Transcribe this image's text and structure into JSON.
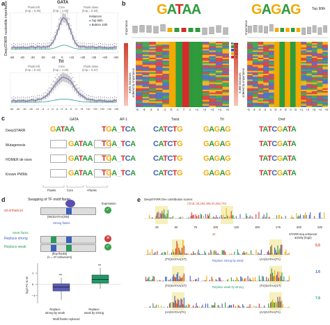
{
  "panels": {
    "a": "a",
    "b": "b",
    "c": "c",
    "d": "d",
    "e": "e"
  },
  "panel_a": {
    "top": {
      "title": "GATA",
      "flank_left": "Flank left",
      "flank_left_imp": "(imp = 0.36)",
      "core": "Core",
      "core_imp": "(imp = 1.00)",
      "flank_down": "Flank down",
      "flank_down_imp": "(imp = 0.40)",
      "legend_title": "Instances",
      "legend_top": "Top 90th",
      "legend_bottom": "Bottom 10th"
    },
    "bottom": {
      "title": "Trl",
      "flank_left": "Flank left",
      "flank_left_imp": "(imp = 0.42)",
      "core": "Core",
      "core_imp": "(imp = 1.00)",
      "flank_down": "Flank down",
      "flank_down_imp": "(imp = 0.37)"
    },
    "ylabel": "DeepSTARR nucleotide importance",
    "xticks_top": [
      "-50",
      "-40",
      "-30",
      "-20",
      "-10",
      "0",
      "+10",
      "+20",
      "+30",
      "+40",
      "+50"
    ],
    "xticks_bottom": [
      "-50",
      "-40",
      "-30",
      "-20",
      "-10",
      "-5",
      "-1",
      "G",
      "A",
      "G",
      "A",
      "G",
      "+1",
      "+5",
      "+10",
      "+20",
      "+30",
      "+40",
      "+50"
    ]
  },
  "panel_b": {
    "logo_left": "GATAA",
    "logo_right": "GAGAG",
    "top90": "Top 90th",
    "importance": "Importance",
    "instances_left": "8,845 instances\nordered by importance",
    "instances_right": "6,388 instances\nordered by importance",
    "base_title": "Base",
    "bases": [
      "A",
      "C",
      "G",
      "T"
    ],
    "base_colors": [
      "#2e9a3c",
      "#3b5fbd",
      "#f2a900",
      "#d62b2b"
    ],
    "xaxis_left": [
      "-5",
      "-4",
      "-3",
      "-2",
      "-1",
      "G",
      "A",
      "T",
      "A",
      "+1",
      "+2",
      "+3",
      "+4",
      "+5"
    ],
    "xaxis_right": [
      "-5",
      "-4",
      "-3",
      "-2",
      "-1",
      "G",
      "A",
      "G",
      "A",
      "G",
      "+1",
      "+2",
      "+3",
      "+4",
      "+5"
    ]
  },
  "panel_c": {
    "motifs": [
      "GATA",
      "AP-1",
      "Twist",
      "Trl",
      "Dref"
    ],
    "rows": [
      "DeepSTARR",
      "Mutagenesis",
      "HOMER de novo",
      "Known PWMs"
    ],
    "flanks": "Flanks",
    "core": "Core",
    "flanks2": "+Flanks",
    "cores": [
      "GATAA",
      "TGA_TCA",
      "CATCTG",
      "GAGAG",
      "TATCGATA"
    ]
  },
  "panel_d": {
    "title": "Swapping of TF motif flanks",
    "expression": "Expression",
    "wt": "wt enhancer",
    "wt_seq": "(NN)GATAA(NN)",
    "strong": "Strong flanks",
    "weak": "Weak flanks",
    "replace_strong": "Replace strong",
    "replace_weak": "Replace weak",
    "seq_strong": "(NN)GATAA(NN)",
    "seq_weak": "(NN)GATAA(NN)",
    "n_note": "(flop flanks)\n(n = 47 enhancers)",
    "ylabel": "log2 FC to wt",
    "xcat1": "Replace\nstrong by weak",
    "xcat2": "Replace\nweak by strong",
    "xlabel": "Motif flanks replaced",
    "sig1": "**",
    "sig2": "**"
  },
  "panel_e": {
    "title": "DeepSTARR Dev contribution scores:",
    "coord": "Chr3L:20,283,495-20,283,743",
    "axis_ticks": [
      "25",
      "50",
      "75",
      "100",
      "125",
      "150",
      "175",
      "200",
      "225"
    ],
    "tracks": [
      {
        "label": "wt",
        "seqs": [
          "(TG)GATAA(GT)",
          "(AA)GATAA(TA)"
        ],
        "activity": "5.5"
      },
      {
        "label": "Replace strong by weak",
        "seqs": [
          "(TG)GATAA(GT)",
          "(TG)GATAA(GT)"
        ],
        "activity": "1.6"
      },
      {
        "label": "Replace weak by strong",
        "seqs": [
          "(AA)GATAA(TA)",
          "(AA)GATAA(TA)"
        ],
        "activity": "7.9"
      }
    ],
    "activity_title": "STARR-seq enhancer\nactivity (log2)"
  },
  "chart_data": [
    {
      "type": "line",
      "title": "GATA",
      "x": [
        -50,
        -40,
        -30,
        -20,
        -10,
        -5,
        -1,
        0,
        1,
        2,
        3,
        4,
        5,
        10,
        20,
        30,
        40,
        50
      ],
      "series": [
        {
          "name": "Top 90th",
          "values": [
            0.04,
            0.05,
            0.06,
            0.08,
            0.12,
            0.2,
            0.4,
            0.9,
            1.0,
            0.95,
            0.85,
            0.45,
            0.25,
            0.12,
            0.08,
            0.06,
            0.05,
            0.04
          ]
        },
        {
          "name": "Bottom 10th",
          "values": [
            0.02,
            0.02,
            0.02,
            0.03,
            0.03,
            0.04,
            0.06,
            0.1,
            0.12,
            0.1,
            0.08,
            0.05,
            0.04,
            0.03,
            0.03,
            0.02,
            0.02,
            0.02
          ]
        }
      ]
    },
    {
      "type": "box",
      "title": "",
      "categories": [
        "Replace strong by weak",
        "Replace weak by strong"
      ],
      "values": [
        {
          "q1": -0.6,
          "median": -0.25,
          "q3": 0.05,
          "min": -1.4,
          "max": 0.6
        },
        {
          "q1": 0.1,
          "median": 0.45,
          "q3": 0.85,
          "min": -0.4,
          "max": 1.5
        }
      ]
    }
  ]
}
